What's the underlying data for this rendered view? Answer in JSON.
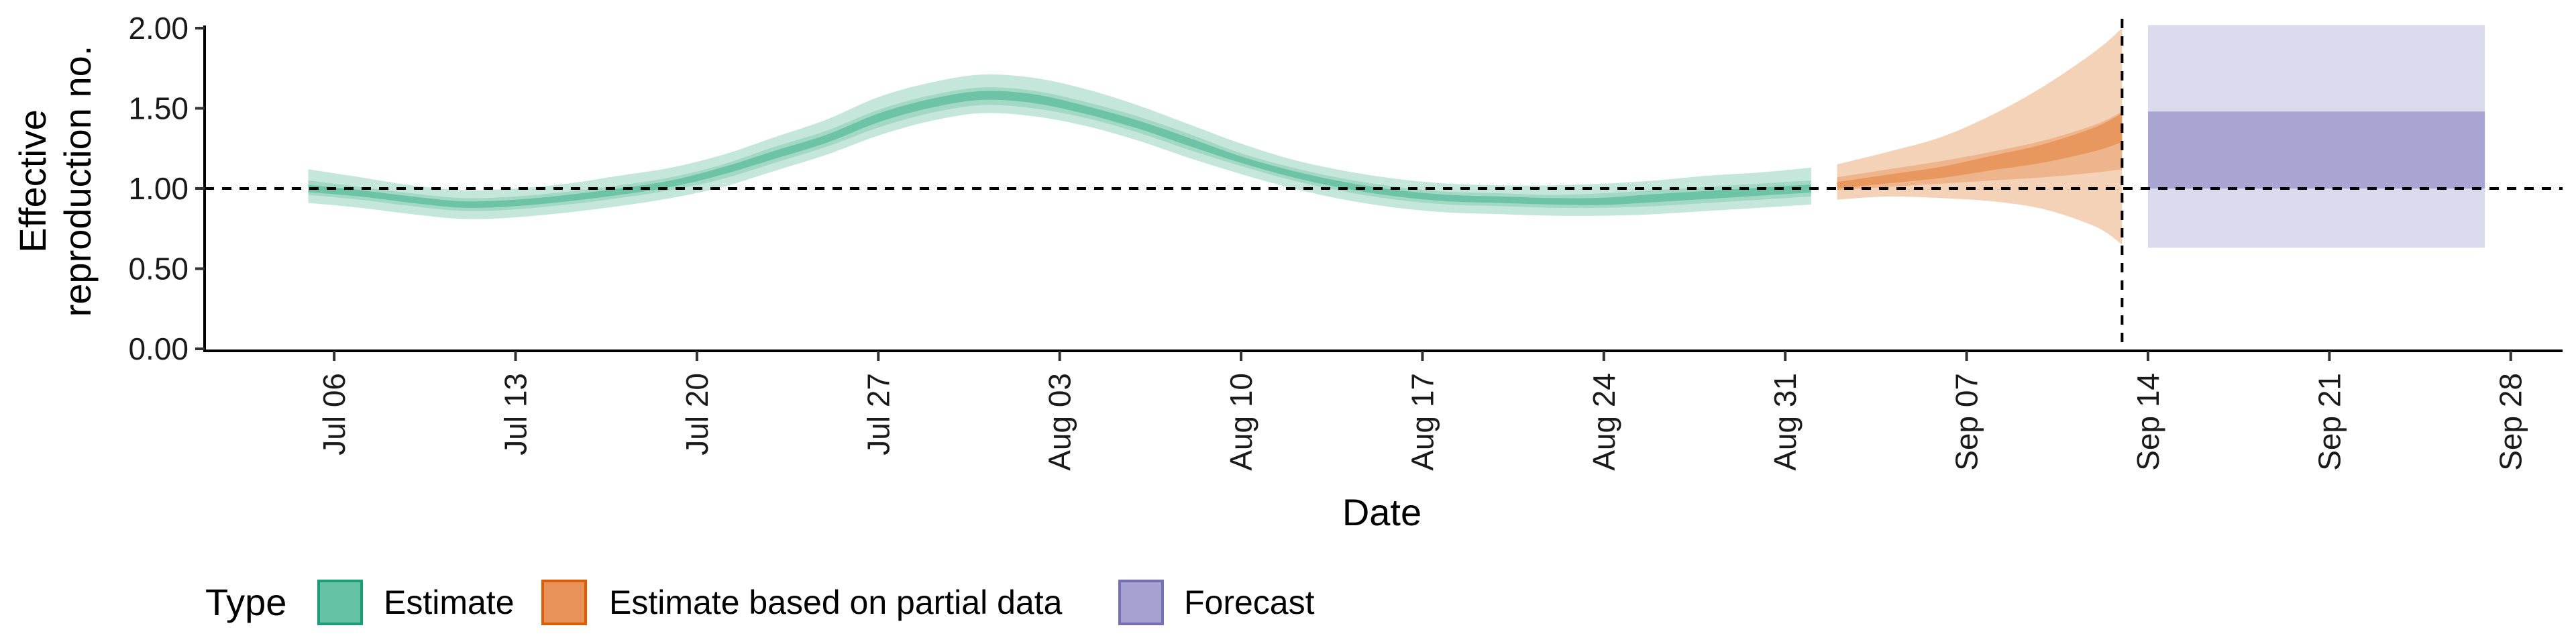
{
  "chart_data": {
    "type": "area",
    "xlabel": "Date",
    "ylabel_lines": [
      "Effective",
      "reproduction no."
    ],
    "ylim": [
      0,
      2.05
    ],
    "xlim": [
      "2020-07-01",
      "2020-09-30"
    ],
    "y_ticks": [
      {
        "value": 0.0,
        "label": "0.00"
      },
      {
        "value": 0.5,
        "label": "0.50"
      },
      {
        "value": 1.0,
        "label": "1.00"
      },
      {
        "value": 1.5,
        "label": "1.50"
      },
      {
        "value": 2.0,
        "label": "2.00"
      }
    ],
    "x_ticks": [
      {
        "date": "2020-07-06",
        "label": "Jul 06"
      },
      {
        "date": "2020-07-13",
        "label": "Jul 13"
      },
      {
        "date": "2020-07-20",
        "label": "Jul 20"
      },
      {
        "date": "2020-07-27",
        "label": "Jul 27"
      },
      {
        "date": "2020-08-03",
        "label": "Aug 03"
      },
      {
        "date": "2020-08-10",
        "label": "Aug 10"
      },
      {
        "date": "2020-08-17",
        "label": "Aug 17"
      },
      {
        "date": "2020-08-24",
        "label": "Aug 24"
      },
      {
        "date": "2020-08-31",
        "label": "Aug 31"
      },
      {
        "date": "2020-09-07",
        "label": "Sep 07"
      },
      {
        "date": "2020-09-14",
        "label": "Sep 14"
      },
      {
        "date": "2020-09-21",
        "label": "Sep 21"
      },
      {
        "date": "2020-09-28",
        "label": "Sep 28"
      }
    ],
    "reference_line_y": 1.0,
    "vertical_line_date": "2020-09-13",
    "legend": {
      "title": "Type",
      "position": "bottom-left",
      "entries": [
        {
          "label": "Estimate",
          "fill": "#66c2a5",
          "stroke": "#1b9e77"
        },
        {
          "label": "Estimate based on partial data",
          "fill": "#e8925a",
          "stroke": "#d95f02"
        },
        {
          "label": "Forecast",
          "fill": "#a5a1d0",
          "stroke": "#7570b3"
        }
      ]
    },
    "series": [
      {
        "type_label": "Estimate",
        "color_outer": "#c5e6da",
        "color_mid": "#a2d8c4",
        "color_inner": "#6cc3a5",
        "x": [
          "2020-07-05",
          "2020-07-07",
          "2020-07-09",
          "2020-07-11",
          "2020-07-13",
          "2020-07-15",
          "2020-07-17",
          "2020-07-19",
          "2020-07-21",
          "2020-07-23",
          "2020-07-25",
          "2020-07-27",
          "2020-07-29",
          "2020-07-31",
          "2020-08-02",
          "2020-08-04",
          "2020-08-06",
          "2020-08-08",
          "2020-08-10",
          "2020-08-12",
          "2020-08-14",
          "2020-08-16",
          "2020-08-18",
          "2020-08-20",
          "2020-08-22",
          "2020-08-24",
          "2020-08-26",
          "2020-08-28",
          "2020-08-30",
          "2020-09-01"
        ],
        "median": [
          1.0,
          0.97,
          0.93,
          0.9,
          0.91,
          0.94,
          0.98,
          1.03,
          1.11,
          1.21,
          1.31,
          1.44,
          1.53,
          1.58,
          1.56,
          1.49,
          1.4,
          1.29,
          1.18,
          1.09,
          1.02,
          0.97,
          0.94,
          0.93,
          0.92,
          0.92,
          0.94,
          0.96,
          0.98,
          1.0
        ],
        "lower_inner": [
          0.96,
          0.93,
          0.89,
          0.86,
          0.87,
          0.9,
          0.94,
          0.99,
          1.06,
          1.16,
          1.26,
          1.38,
          1.47,
          1.52,
          1.5,
          1.44,
          1.35,
          1.24,
          1.14,
          1.05,
          0.98,
          0.93,
          0.9,
          0.89,
          0.88,
          0.88,
          0.89,
          0.91,
          0.93,
          0.95
        ],
        "upper_inner": [
          1.05,
          1.01,
          0.97,
          0.94,
          0.95,
          0.98,
          1.02,
          1.07,
          1.15,
          1.26,
          1.36,
          1.49,
          1.58,
          1.63,
          1.61,
          1.54,
          1.45,
          1.34,
          1.22,
          1.13,
          1.06,
          1.01,
          0.98,
          0.97,
          0.96,
          0.97,
          0.99,
          1.01,
          1.03,
          1.05
        ],
        "lower": [
          0.91,
          0.88,
          0.84,
          0.81,
          0.82,
          0.85,
          0.89,
          0.94,
          1.01,
          1.11,
          1.21,
          1.33,
          1.42,
          1.47,
          1.45,
          1.39,
          1.3,
          1.19,
          1.09,
          1.0,
          0.93,
          0.88,
          0.85,
          0.84,
          0.83,
          0.83,
          0.84,
          0.86,
          0.88,
          0.9
        ],
        "upper": [
          1.12,
          1.07,
          1.02,
          0.99,
          1.0,
          1.03,
          1.08,
          1.13,
          1.21,
          1.32,
          1.43,
          1.57,
          1.66,
          1.71,
          1.69,
          1.62,
          1.52,
          1.4,
          1.28,
          1.18,
          1.11,
          1.06,
          1.03,
          1.02,
          1.02,
          1.03,
          1.05,
          1.08,
          1.1,
          1.13
        ]
      },
      {
        "type_label": "Estimate based on partial data",
        "color_outer": "#f4d2b8",
        "color_mid": "#eeb58c",
        "color_inner": "#e8975e",
        "x": [
          "2020-09-02",
          "2020-09-04",
          "2020-09-06",
          "2020-09-08",
          "2020-09-10",
          "2020-09-12",
          "2020-09-13"
        ],
        "median": [
          1.02,
          1.06,
          1.1,
          1.16,
          1.22,
          1.31,
          1.38
        ],
        "lower_inner": [
          0.99,
          1.01,
          1.03,
          1.05,
          1.07,
          1.1,
          1.12
        ],
        "upper_inner": [
          1.07,
          1.12,
          1.17,
          1.23,
          1.3,
          1.4,
          1.48
        ],
        "lower": [
          0.93,
          0.95,
          0.94,
          0.92,
          0.87,
          0.76,
          0.65
        ],
        "upper": [
          1.15,
          1.23,
          1.32,
          1.46,
          1.64,
          1.86,
          2.0
        ]
      },
      {
        "type_label": "Forecast",
        "color_outer": "#dcdbee",
        "color_mid": "#c4c2e1",
        "color_inner": "#a8a5d2",
        "x": [
          "2020-09-14",
          "2020-09-27"
        ],
        "lower": [
          0.63,
          0.63
        ],
        "upper": [
          2.02,
          2.02
        ],
        "lower_inner": [
          1.0,
          1.0
        ],
        "upper_inner": [
          1.48,
          1.48
        ]
      }
    ]
  }
}
